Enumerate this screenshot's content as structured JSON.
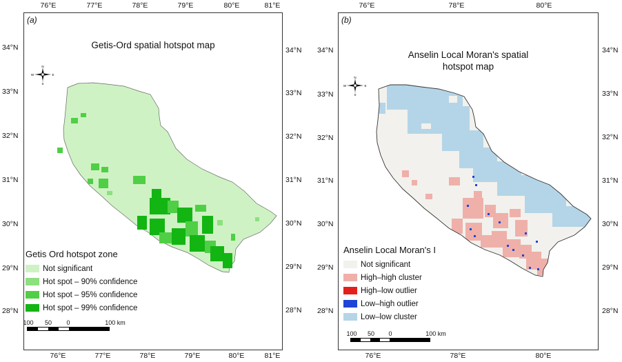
{
  "panel_a": {
    "label": "(a)",
    "title": "Getis-Ord spatial hotspot map",
    "lon_ticks": [
      "76°E",
      "77°E",
      "78°E",
      "79°E",
      "80°E",
      "81°E"
    ],
    "lat_ticks": [
      "34°N",
      "33°N",
      "32°N",
      "31°N",
      "30°N",
      "29°N",
      "28°N"
    ],
    "legend": {
      "title": "Getis Ord hotspot zone",
      "items": [
        {
          "label": "Not significant",
          "color": "#cff2c4"
        },
        {
          "label": "Hot spot – 90% confidence",
          "color": "#8de07f"
        },
        {
          "label": "Hot spot – 95% confidence",
          "color": "#4fcf45"
        },
        {
          "label": "Hot spot – 99% confidence",
          "color": "#13b513"
        }
      ]
    },
    "scale": {
      "labels": [
        "100",
        "50",
        "0",
        "100 km"
      ]
    },
    "compass": {
      "n": "N",
      "s": "S",
      "e": "E",
      "w": "W"
    }
  },
  "panel_b": {
    "label": "(b)",
    "title_line1": "Anselin Local Moran's spatial",
    "title_line2": "hotspot map",
    "lon_ticks": [
      "76°E",
      "78°E",
      "80°E"
    ],
    "lat_ticks": [
      "34°N",
      "33°N",
      "32°N",
      "31°N",
      "30°N",
      "29°N",
      "28°N"
    ],
    "legend": {
      "title": "Anselin Local Moran's I",
      "items": [
        {
          "label": "Not significant",
          "color": "#f2f1ed"
        },
        {
          "label": "High–high cluster",
          "color": "#efb0aa"
        },
        {
          "label": "High–low outlier",
          "color": "#e3201c"
        },
        {
          "label": "Low–high outlier",
          "color": "#1f44d8"
        },
        {
          "label": "Low–low cluster",
          "color": "#b4d5e7"
        }
      ]
    },
    "scale": {
      "labels": [
        "100",
        "50",
        "0",
        "100 km"
      ]
    },
    "compass": {
      "n": "N",
      "s": "S",
      "e": "E",
      "w": "W"
    }
  }
}
